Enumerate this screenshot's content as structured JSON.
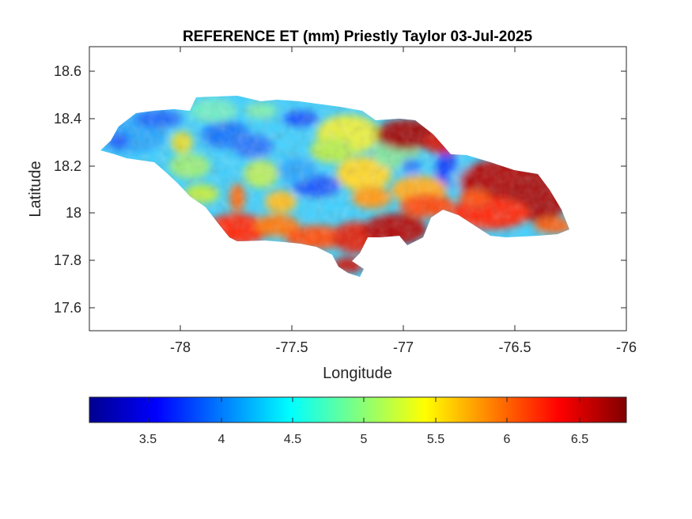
{
  "figure": {
    "title": "REFERENCE ET (mm) Priestly Taylor 03-Jul-2025",
    "xlabel": "Longitude",
    "ylabel": "Latitude"
  },
  "chart_data": {
    "type": "heatmap",
    "title": "REFERENCE ET (mm) Priestly Taylor 03-Jul-2025",
    "xlabel": "Longitude",
    "ylabel": "Latitude",
    "xlim": [
      -78.42,
      -76
    ],
    "ylim": [
      17.5,
      18.7
    ],
    "x_ticks": [
      "-78",
      "-77.5",
      "-77",
      "-76.5",
      "-76"
    ],
    "x_tick_values": [
      -78,
      -77.5,
      -77,
      -76.5,
      -76
    ],
    "y_ticks": [
      "18.6",
      "18.4",
      "18.2",
      "18",
      "17.8",
      "17.6"
    ],
    "y_tick_values": [
      18.6,
      18.4,
      18.2,
      18,
      17.8,
      17.6
    ],
    "grid": false,
    "colormap": "jet",
    "colorbar": {
      "orientation": "horizontal",
      "location": "bottom",
      "clim": [
        3.1,
        6.8
      ],
      "ticks": [
        "3.5",
        "4",
        "4.5",
        "5",
        "5.5",
        "6",
        "6.5"
      ],
      "tick_values": [
        3.5,
        4,
        4.5,
        5,
        5.5,
        6,
        6.5
      ]
    },
    "region": "Jamaica",
    "value_pattern": [
      {
        "area": "west",
        "approx_value": 4.4
      },
      {
        "area": "north-central",
        "approx_value": 4.3
      },
      {
        "area": "central",
        "approx_value": 4.6
      },
      {
        "area": "south-west coast",
        "approx_value": 6.0
      },
      {
        "area": "south coast",
        "approx_value": 6.4
      },
      {
        "area": "east",
        "approx_value": 6.5
      }
    ]
  },
  "colors": {
    "axes_color": "#262626",
    "background": "#ffffff"
  }
}
